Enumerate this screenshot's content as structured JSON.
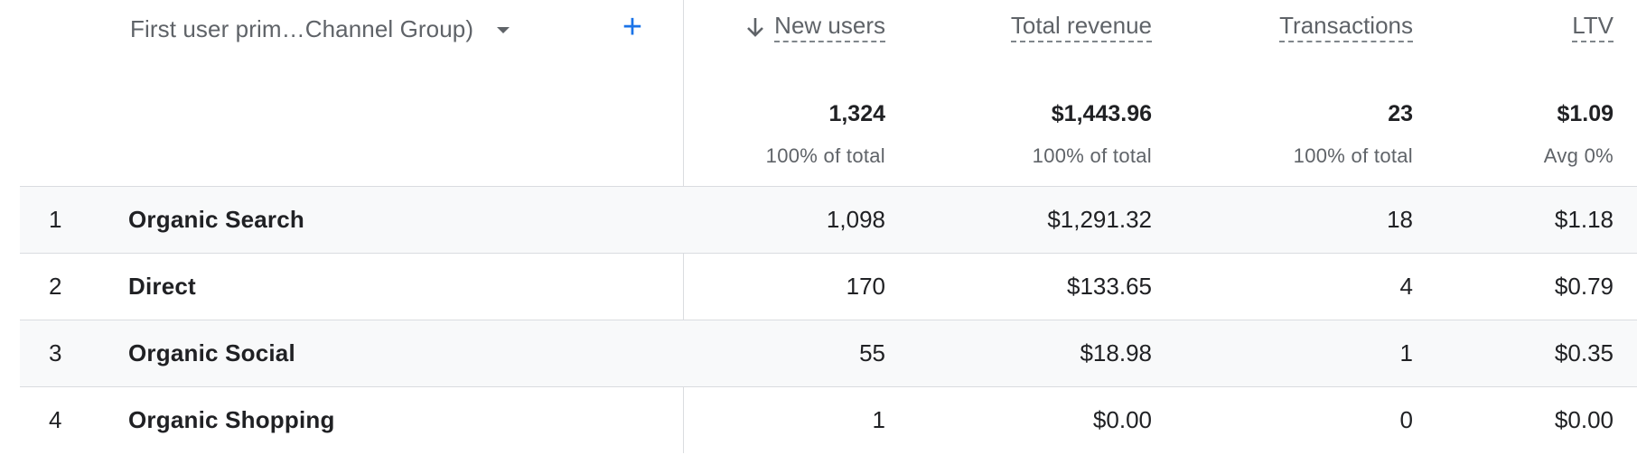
{
  "dimension": {
    "label": "First user prim…Channel Group)"
  },
  "columns": [
    {
      "label": "New users",
      "sorted": "desc",
      "total": "1,324",
      "total_sub": "100% of total"
    },
    {
      "label": "Total revenue",
      "total": "$1,443.96",
      "total_sub": "100% of total"
    },
    {
      "label": "Transactions",
      "total": "23",
      "total_sub": "100% of total"
    },
    {
      "label": "LTV",
      "total": "$1.09",
      "total_sub": "Avg 0%"
    }
  ],
  "rows": [
    {
      "index": "1",
      "name": "Organic Search",
      "new_users": "1,098",
      "total_revenue": "$1,291.32",
      "transactions": "18",
      "ltv": "$1.18"
    },
    {
      "index": "2",
      "name": "Direct",
      "new_users": "170",
      "total_revenue": "$133.65",
      "transactions": "4",
      "ltv": "$0.79"
    },
    {
      "index": "3",
      "name": "Organic Social",
      "new_users": "55",
      "total_revenue": "$18.98",
      "transactions": "1",
      "ltv": "$0.35"
    },
    {
      "index": "4",
      "name": "Organic Shopping",
      "new_users": "1",
      "total_revenue": "$0.00",
      "transactions": "0",
      "ltv": "$0.00"
    }
  ],
  "icons": {
    "sort": "arrow-down-icon",
    "add": "plus-icon",
    "dropdown": "caret-down-icon"
  },
  "colors": {
    "accent": "#1a73e8",
    "row_alt": "#f8f9fa",
    "divider": "#dadce0"
  }
}
